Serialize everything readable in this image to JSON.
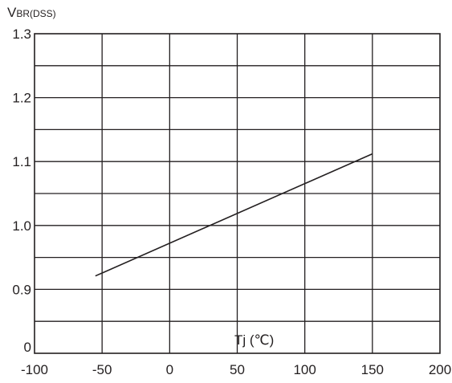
{
  "chart_data": {
    "type": "line",
    "ylabel": {
      "main": "V",
      "sub": "BR(DSS)"
    },
    "xlabel": "Tj (℃)",
    "xlim": [
      -100,
      200
    ],
    "ylim": [
      0,
      1.3
    ],
    "x_ticks": [
      -100,
      -50,
      0,
      50,
      100,
      150,
      200
    ],
    "x_tick_labels": [
      "-100",
      "-50",
      "0",
      "50",
      "100",
      "150",
      "200"
    ],
    "y_tick_labels": [
      {
        "value": 0,
        "label": "0"
      },
      {
        "value": 0.9,
        "label": "0.9"
      },
      {
        "value": 1.0,
        "label": "1.0"
      },
      {
        "value": 1.1,
        "label": "1.1"
      },
      {
        "value": 1.2,
        "label": "1.2"
      },
      {
        "value": 1.3,
        "label": "1.3"
      }
    ],
    "y_axis_note": "axis break: bottom band runs from 0 up to 0.9",
    "grid": true,
    "series": [
      {
        "x": [
          -55,
          150
        ],
        "y": [
          0.921,
          1.112
        ]
      }
    ]
  }
}
